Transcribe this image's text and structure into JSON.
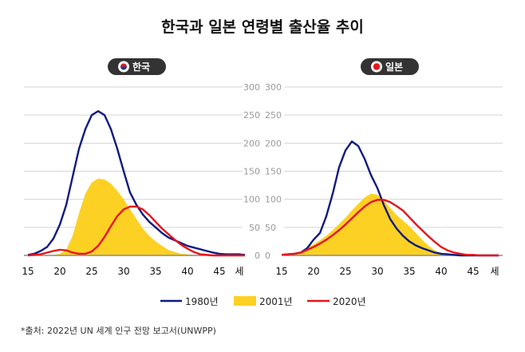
{
  "title": "한국과 일본 연령별 출산율 추이",
  "legend": [
    {
      "label": "1980년",
      "color": "#0d1b82",
      "style": "line"
    },
    {
      "label": "2001년",
      "color": "#fcd123",
      "style": "area"
    },
    {
      "label": "2020년",
      "color": "#e8141a",
      "style": "line"
    }
  ],
  "source": "*출처: 2022년 UN 세계 인구 전망 보고서(UNWPP)",
  "chart_data": [
    {
      "type": "line",
      "panel_label": "한국",
      "flag_icon": "korea-flag-icon",
      "x_unit": "세",
      "x_ticks": [
        "15",
        "20",
        "25",
        "30",
        "35",
        "40",
        "45"
      ],
      "y_ticks": [
        "0",
        "50",
        "100",
        "150",
        "200",
        "250",
        "300"
      ],
      "ylim": [
        0,
        300
      ],
      "y_axis_side": "right",
      "grid": true,
      "x": [
        15,
        16,
        17,
        18,
        19,
        20,
        21,
        22,
        23,
        24,
        25,
        26,
        27,
        28,
        29,
        30,
        31,
        32,
        33,
        34,
        35,
        36,
        37,
        38,
        39,
        40,
        41,
        42,
        43,
        44,
        45,
        46,
        47,
        48,
        49
      ],
      "series": [
        {
          "name": "1980년",
          "style": "line",
          "values": [
            1,
            3,
            8,
            15,
            30,
            55,
            90,
            140,
            190,
            225,
            250,
            257,
            250,
            225,
            190,
            150,
            112,
            90,
            73,
            60,
            50,
            40,
            32,
            27,
            22,
            17,
            14,
            11,
            8,
            5,
            3,
            2,
            2,
            2,
            1
          ]
        },
        {
          "name": "2001년",
          "style": "area",
          "values": [
            0,
            0,
            0,
            0,
            1,
            3,
            10,
            35,
            75,
            110,
            130,
            137,
            135,
            128,
            115,
            100,
            82,
            65,
            48,
            35,
            25,
            17,
            10,
            6,
            3,
            2,
            1,
            0,
            0,
            0,
            0,
            0,
            0,
            0,
            0
          ]
        },
        {
          "name": "2020년",
          "style": "line",
          "values": [
            0,
            1,
            2,
            5,
            8,
            10,
            9,
            5,
            3,
            3,
            7,
            17,
            33,
            52,
            70,
            82,
            87,
            87,
            82,
            72,
            60,
            48,
            38,
            28,
            19,
            12,
            6,
            2,
            1,
            0,
            0,
            0,
            0,
            0,
            0
          ]
        }
      ]
    },
    {
      "type": "line",
      "panel_label": "일본",
      "flag_icon": "japan-flag-icon",
      "x_unit": "세",
      "x_ticks": [
        "15",
        "20",
        "25",
        "30",
        "35",
        "40",
        "45"
      ],
      "y_ticks": [
        "0",
        "50",
        "100",
        "150",
        "200",
        "250",
        "300"
      ],
      "ylim": [
        0,
        300
      ],
      "y_axis_side": "left",
      "grid": true,
      "x": [
        15,
        16,
        17,
        18,
        19,
        20,
        21,
        22,
        23,
        24,
        25,
        26,
        27,
        28,
        29,
        30,
        31,
        32,
        33,
        34,
        35,
        36,
        37,
        38,
        39,
        40,
        41,
        42,
        43,
        44,
        45,
        46,
        47,
        48,
        49
      ],
      "series": [
        {
          "name": "1980년",
          "style": "line",
          "values": [
            1,
            2,
            3,
            5,
            13,
            28,
            40,
            70,
            110,
            157,
            187,
            203,
            195,
            172,
            143,
            120,
            90,
            65,
            48,
            35,
            25,
            18,
            13,
            9,
            5,
            3,
            2,
            1,
            0,
            0,
            0,
            0,
            0,
            0,
            0
          ]
        },
        {
          "name": "2001년",
          "style": "area",
          "values": [
            1,
            2,
            4,
            7,
            14,
            20,
            27,
            35,
            45,
            56,
            67,
            80,
            92,
            103,
            110,
            108,
            98,
            85,
            72,
            62,
            52,
            40,
            28,
            17,
            9,
            4,
            2,
            1,
            0,
            0,
            0,
            0,
            0,
            0,
            0
          ]
        },
        {
          "name": "2020년",
          "style": "line",
          "values": [
            1,
            2,
            3,
            5,
            10,
            15,
            21,
            28,
            36,
            45,
            55,
            66,
            77,
            87,
            95,
            99,
            99,
            95,
            88,
            80,
            68,
            56,
            45,
            34,
            24,
            15,
            9,
            5,
            3,
            1,
            1,
            0,
            0,
            0,
            0
          ]
        }
      ]
    }
  ]
}
